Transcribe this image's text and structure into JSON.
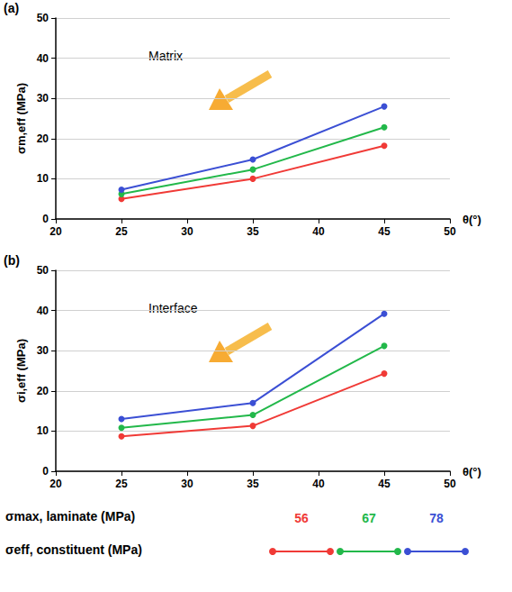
{
  "chart_data": [
    {
      "type": "line",
      "panel_label": "(a)",
      "annotations": [
        "Matrix"
      ],
      "x_label": "θ(°)",
      "y_label": "σm,eff (MPa)",
      "x": [
        25,
        35,
        45
      ],
      "xlim": [
        20,
        50
      ],
      "xticks": [
        20,
        25,
        30,
        35,
        40,
        45,
        50
      ],
      "ylim": [
        0,
        50
      ],
      "yticks": [
        0,
        10,
        20,
        30,
        40,
        50
      ],
      "grid": true,
      "marker": "circle",
      "series": [
        {
          "name": "56",
          "color": "#f03a36",
          "values": [
            5.0,
            10.0,
            18.2
          ]
        },
        {
          "name": "67",
          "color": "#22b84a",
          "values": [
            6.2,
            12.3,
            22.8
          ]
        },
        {
          "name": "78",
          "color": "#3b4fd4",
          "values": [
            7.3,
            14.8,
            28.0
          ]
        }
      ]
    },
    {
      "type": "line",
      "panel_label": "(b)",
      "annotations": [
        "Interface"
      ],
      "x_label": "θ(°)",
      "y_label": "σi,eff (MPa)",
      "x": [
        25,
        35,
        45
      ],
      "xlim": [
        20,
        50
      ],
      "xticks": [
        20,
        25,
        30,
        35,
        40,
        45,
        50
      ],
      "ylim": [
        0,
        50
      ],
      "yticks": [
        0,
        10,
        20,
        30,
        40,
        50
      ],
      "grid": true,
      "marker": "circle",
      "series": [
        {
          "name": "56",
          "color": "#f03a36",
          "values": [
            8.7,
            11.3,
            24.3
          ]
        },
        {
          "name": "67",
          "color": "#22b84a",
          "values": [
            10.8,
            14.0,
            31.2
          ]
        },
        {
          "name": "78",
          "color": "#3b4fd4",
          "values": [
            13.0,
            17.0,
            39.2
          ]
        }
      ]
    }
  ],
  "legend": "bottom",
  "legend_key": {
    "series_heading": "σmax, laminate (MPa)",
    "line_heading": "σeff, constituent (MPa)"
  }
}
